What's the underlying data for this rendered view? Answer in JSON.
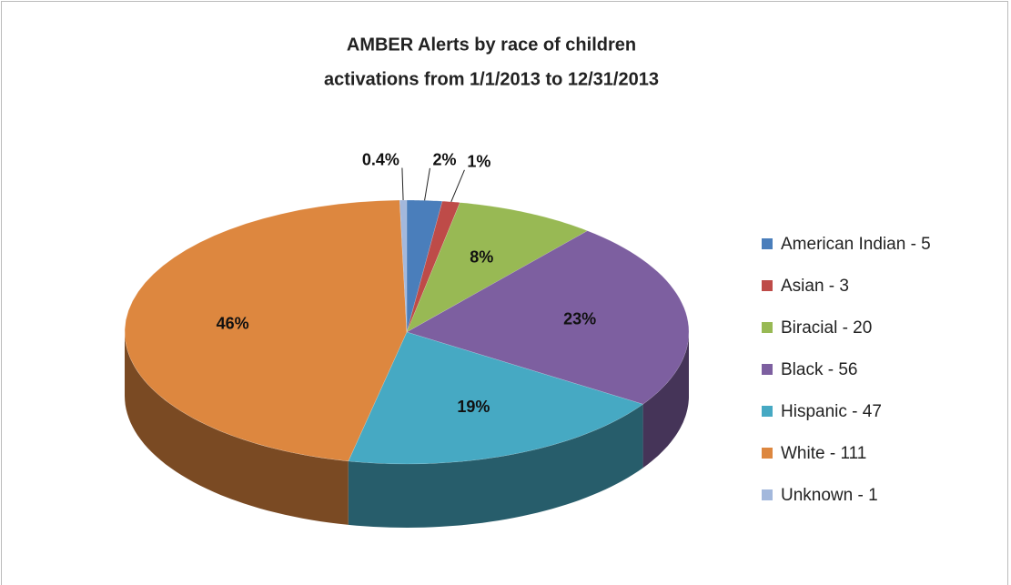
{
  "chart_data": {
    "type": "pie3d",
    "title": [
      "AMBER Alerts  by race of children",
      "activations from 1/1/2013 to 12/31/2013"
    ],
    "categories": [
      "American Indian - 5",
      "Asian - 3",
      "Biracial - 20",
      "Black - 56",
      "Hispanic - 47",
      "White - 111",
      "Unknown - 1"
    ],
    "values": [
      2,
      1,
      8,
      23,
      19,
      46,
      0.4
    ],
    "value_labels": [
      "2%",
      "1%",
      "8%",
      "23%",
      "19%",
      "46%",
      "0.4%"
    ],
    "colors": [
      "#4a7ebb",
      "#be4b48",
      "#98b954",
      "#7d5fa0",
      "#46a9c3",
      "#dd873f",
      "#a3b8dc"
    ],
    "legend": "right"
  }
}
